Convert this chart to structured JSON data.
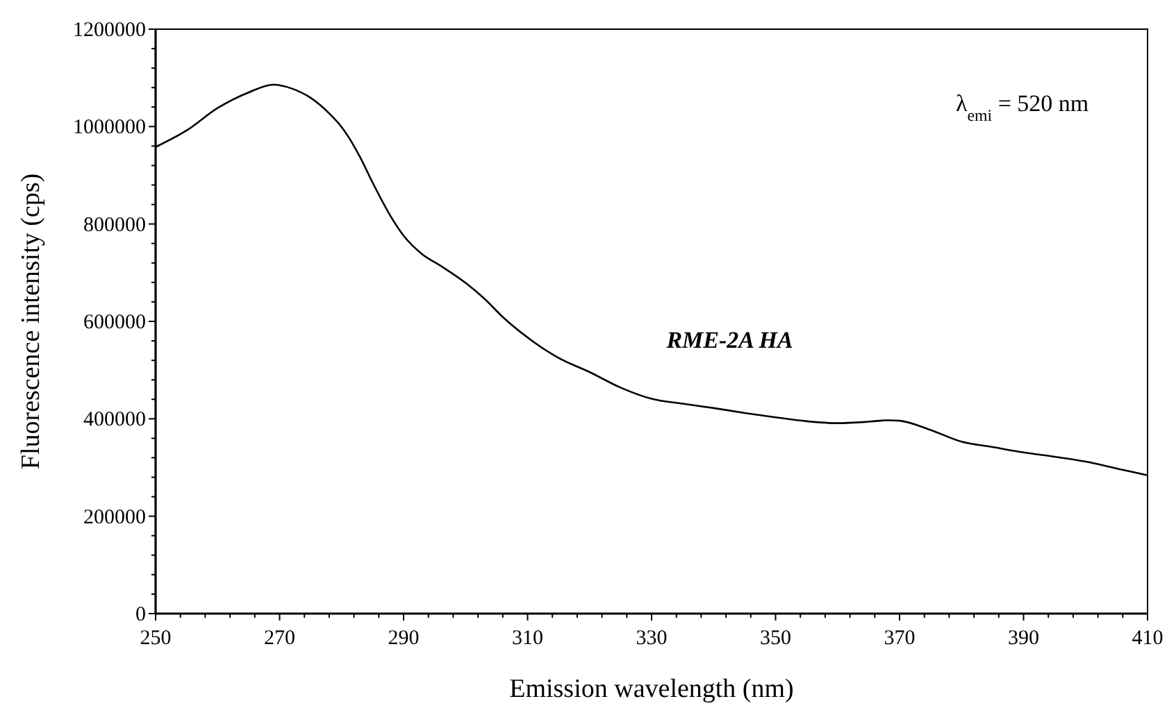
{
  "chart_data": {
    "type": "line",
    "xlabel": "Emission wavelength (nm)",
    "ylabel": "Fluorescence intensity (cps)",
    "annotations": [
      "λ$_{emi}$ = 520 nm"
    ],
    "x": [
      250,
      255,
      260,
      265,
      269,
      272,
      275,
      278,
      280,
      283,
      285,
      288,
      290,
      293,
      296,
      300,
      303,
      306,
      310,
      315,
      320,
      325,
      330,
      335,
      340,
      345,
      350,
      355,
      360,
      365,
      368,
      370,
      375,
      380,
      385,
      390,
      395,
      400,
      405,
      410
    ],
    "series": [
      {
        "name": "RME-2A HA",
        "color": "#000000",
        "values": [
          958000,
          992000,
          1038000,
          1070000,
          1086000,
          1078000,
          1059000,
          1027000,
          999000,
          937000,
          885000,
          814000,
          776000,
          738000,
          714000,
          679000,
          647000,
          609000,
          567000,
          525000,
          496000,
          464000,
          441000,
          431000,
          422000,
          412000,
          403000,
          395000,
          391000,
          394000,
          397000,
          396000,
          377000,
          353000,
          342000,
          331000,
          322000,
          312000,
          298000,
          284000
        ]
      }
    ],
    "xlim": [
      250,
      410
    ],
    "ylim": [
      0,
      1200000
    ],
    "xticks": [
      250,
      {
        "value": 254,
        "label": null
      },
      {
        "value": 258,
        "label": null
      },
      {
        "value": 262,
        "label": null
      },
      {
        "value": 266,
        "label": null
      },
      270,
      {
        "value": 274,
        "label": null
      },
      {
        "value": 278,
        "label": null
      },
      {
        "value": 282,
        "label": null
      },
      {
        "value": 286,
        "label": null
      },
      290,
      {
        "value": 294,
        "label": null
      },
      {
        "value": 298,
        "label": null
      },
      {
        "value": 302,
        "label": null
      },
      {
        "value": 306,
        "label": null
      },
      310,
      {
        "value": 314,
        "label": null
      },
      {
        "value": 318,
        "label": null
      },
      {
        "value": 322,
        "label": null
      },
      {
        "value": 326,
        "label": null
      },
      330,
      {
        "value": 334,
        "label": null
      },
      {
        "value": 338,
        "label": null
      },
      {
        "value": 342,
        "label": null
      },
      {
        "value": 346,
        "label": null
      },
      350,
      {
        "value": 354,
        "label": null
      },
      {
        "value": 358,
        "label": null
      },
      {
        "value": 362,
        "label": null
      },
      {
        "value": 366,
        "label": null
      },
      370,
      {
        "value": 374,
        "label": null
      },
      {
        "value": 378,
        "label": null
      },
      {
        "value": 382,
        "label": null
      },
      {
        "value": 386,
        "label": null
      },
      390,
      {
        "value": 394,
        "label": null
      },
      {
        "value": 398,
        "label": null
      },
      {
        "value": 402,
        "label": null
      },
      {
        "value": 406,
        "label": null
      },
      410
    ],
    "yticks": [
      0,
      {
        "value": 40000,
        "label": null
      },
      {
        "value": 80000,
        "label": null
      },
      {
        "value": 120000,
        "label": null
      },
      {
        "value": 160000,
        "label": null
      },
      200000,
      {
        "value": 240000,
        "label": null
      },
      {
        "value": 280000,
        "label": null
      },
      {
        "value": 320000,
        "label": null
      },
      {
        "value": 360000,
        "label": null
      },
      400000,
      {
        "value": 440000,
        "label": null
      },
      {
        "value": 480000,
        "label": null
      },
      {
        "value": 520000,
        "label": null
      },
      {
        "value": 560000,
        "label": null
      },
      600000,
      {
        "value": 640000,
        "label": null
      },
      {
        "value": 680000,
        "label": null
      },
      {
        "value": 720000,
        "label": null
      },
      {
        "value": 760000,
        "label": null
      },
      800000,
      {
        "value": 840000,
        "label": null
      },
      {
        "value": 880000,
        "label": null
      },
      {
        "value": 920000,
        "label": null
      },
      {
        "value": 960000,
        "label": null
      },
      1000000,
      {
        "value": 1040000,
        "label": null
      },
      {
        "value": 1080000,
        "label": null
      },
      {
        "value": 1120000,
        "label": null
      },
      {
        "value": 1160000,
        "label": null
      },
      1200000
    ],
    "grid": false,
    "marker": "none",
    "line_style": "solid"
  }
}
